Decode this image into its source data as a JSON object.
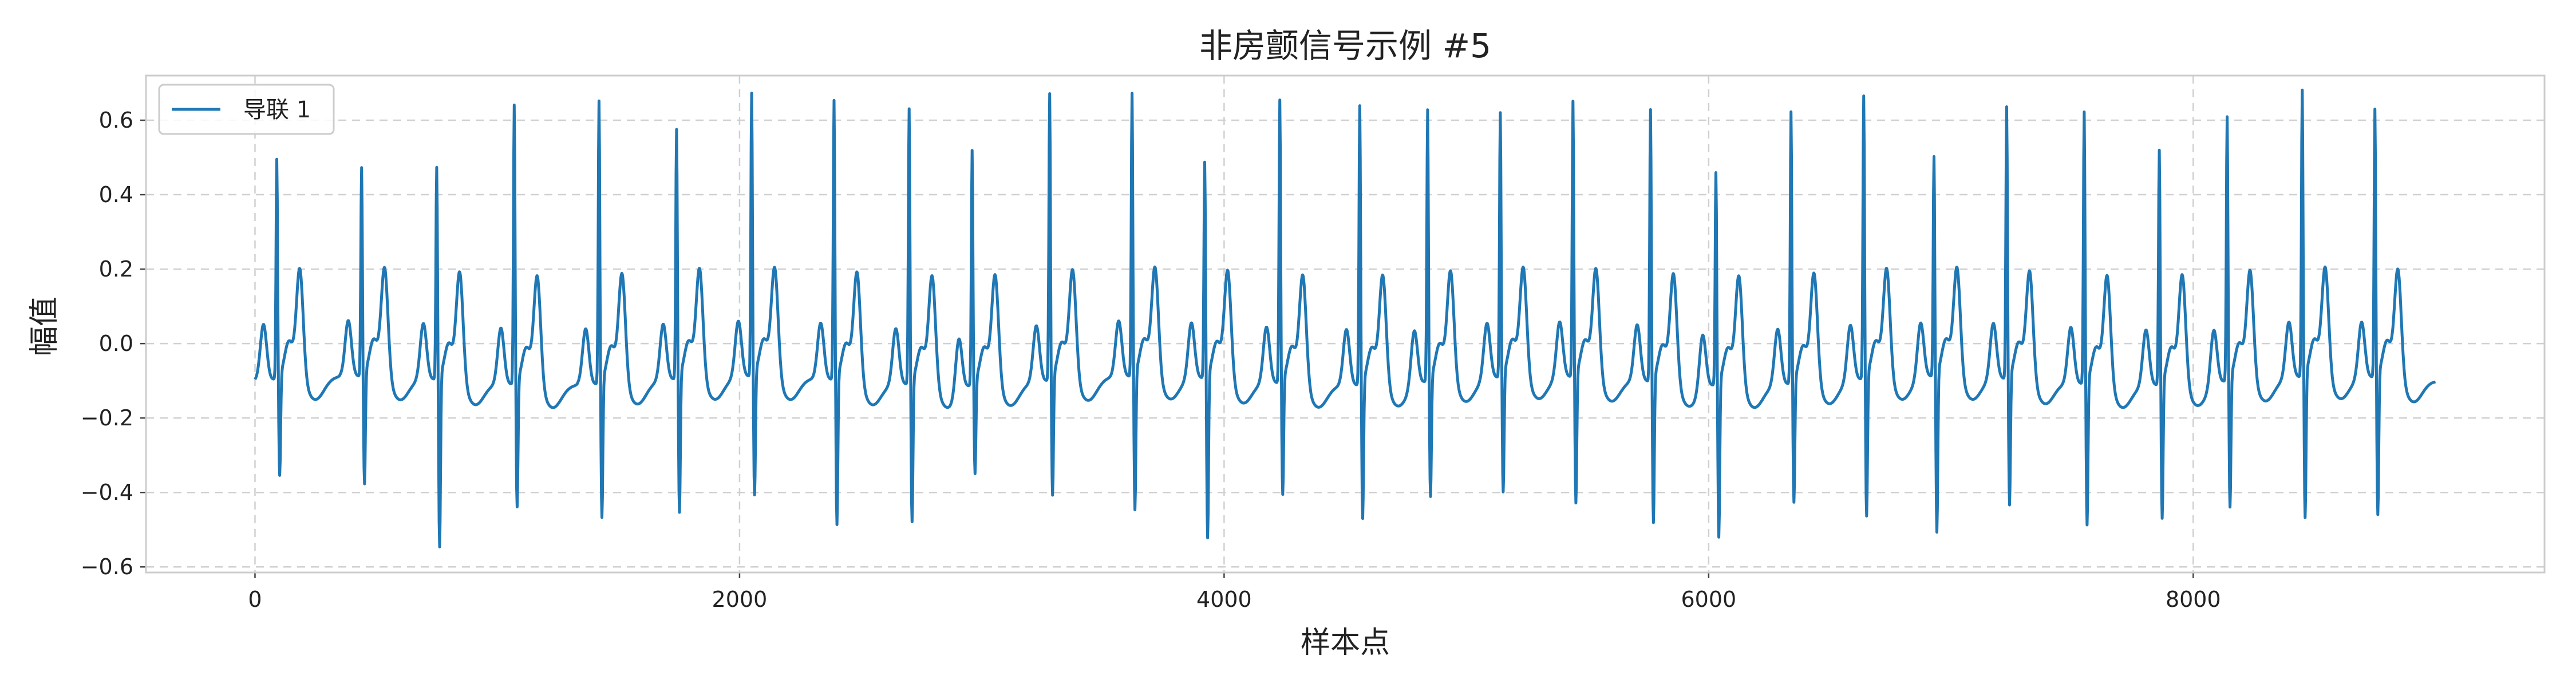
{
  "chart_data": {
    "type": "line",
    "title": "非房颤信号示例 #5",
    "xlabel": "样本点",
    "ylabel": "幅值",
    "xlim": [
      -450,
      9450
    ],
    "ylim": [
      -0.615,
      0.72
    ],
    "x_ticks": [
      0,
      2000,
      4000,
      6000,
      8000
    ],
    "x_tick_labels": [
      "0",
      "2000",
      "4000",
      "6000",
      "8000"
    ],
    "y_ticks": [
      -0.6,
      -0.4,
      -0.2,
      0.0,
      0.2,
      0.4,
      0.6
    ],
    "y_tick_labels": [
      "−0.6",
      "−0.4",
      "−0.2",
      "0.0",
      "0.2",
      "0.4",
      "0.6"
    ],
    "grid": true,
    "legend_position": "top-left",
    "series": [
      {
        "name": "导联 1",
        "color": "#1f77b4",
        "x_start": 0,
        "x_end": 9000,
        "baseline": -0.1,
        "beats": [
          {
            "x": 90,
            "r": 0.49,
            "s": -0.37
          },
          {
            "x": 440,
            "r": 0.46,
            "s": -0.4
          },
          {
            "x": 750,
            "r": 0.47,
            "s": -0.56
          },
          {
            "x": 1070,
            "r": 0.65,
            "s": -0.44
          },
          {
            "x": 1420,
            "r": 0.66,
            "s": -0.47
          },
          {
            "x": 1740,
            "r": 0.57,
            "s": -0.47
          },
          {
            "x": 2050,
            "r": 0.66,
            "s": -0.43
          },
          {
            "x": 2390,
            "r": 0.65,
            "s": -0.5
          },
          {
            "x": 2700,
            "r": 0.64,
            "s": -0.48
          },
          {
            "x": 2960,
            "r": 0.53,
            "s": -0.35
          },
          {
            "x": 3280,
            "r": 0.67,
            "s": -0.42
          },
          {
            "x": 3620,
            "r": 0.66,
            "s": -0.47
          },
          {
            "x": 3920,
            "r": 0.48,
            "s": -0.54
          },
          {
            "x": 4230,
            "r": 0.66,
            "s": -0.41
          },
          {
            "x": 4560,
            "r": 0.65,
            "s": -0.47
          },
          {
            "x": 4840,
            "r": 0.63,
            "s": -0.42
          },
          {
            "x": 5140,
            "r": 0.61,
            "s": -0.42
          },
          {
            "x": 5440,
            "r": 0.64,
            "s": -0.45
          },
          {
            "x": 5760,
            "r": 0.63,
            "s": -0.49
          },
          {
            "x": 6030,
            "r": 0.47,
            "s": -0.52
          },
          {
            "x": 6340,
            "r": 0.63,
            "s": -0.43
          },
          {
            "x": 6640,
            "r": 0.66,
            "s": -0.48
          },
          {
            "x": 6930,
            "r": 0.49,
            "s": -0.53
          },
          {
            "x": 7230,
            "r": 0.63,
            "s": -0.45
          },
          {
            "x": 7550,
            "r": 0.63,
            "s": -0.49
          },
          {
            "x": 7860,
            "r": 0.53,
            "s": -0.47
          },
          {
            "x": 8140,
            "r": 0.61,
            "s": -0.45
          },
          {
            "x": 8450,
            "r": 0.67,
            "s": -0.49
          },
          {
            "x": 8750,
            "r": 0.62,
            "s": -0.48
          }
        ]
      }
    ]
  }
}
